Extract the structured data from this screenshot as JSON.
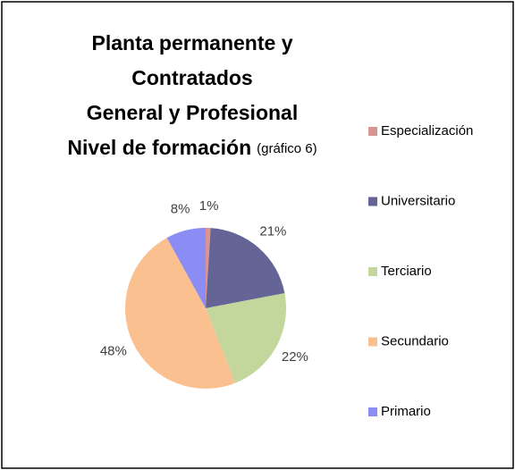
{
  "chart_data": {
    "type": "pie",
    "title": [
      "Planta permanente y",
      "Contratados",
      "General y Profesional",
      "Nivel de formación"
    ],
    "subtitle": "(gráfico 6)",
    "categories": [
      "Especialización",
      "Universitario",
      "Terciario",
      "Secundario",
      "Primario"
    ],
    "values": [
      1,
      21,
      22,
      48,
      8
    ],
    "value_labels": [
      "1%",
      "21%",
      "22%",
      "48%",
      "8%"
    ],
    "colors": [
      "#d99594",
      "#646496",
      "#c3d69b",
      "#fac090",
      "#8c8cf5"
    ],
    "legend": "right"
  }
}
